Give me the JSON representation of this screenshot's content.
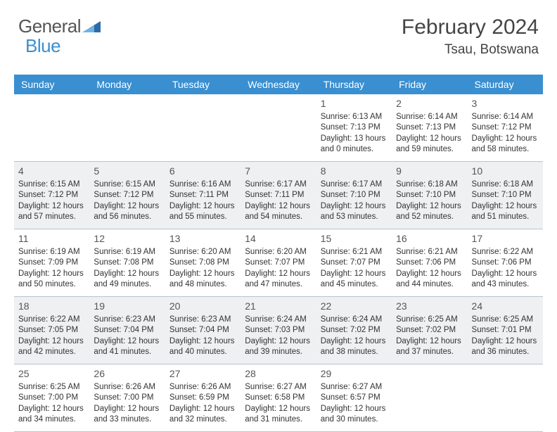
{
  "logo": {
    "text1": "General",
    "text2": "Blue",
    "icon_color": "#2f6aa8"
  },
  "header": {
    "month": "February 2024",
    "location": "Tsau, Botswana"
  },
  "colors": {
    "header_bar": "#3a8fd0",
    "gray_cell": "#eef0f2",
    "rule": "#b8c4d0",
    "text": "#333333"
  },
  "weekdays": [
    "Sunday",
    "Monday",
    "Tuesday",
    "Wednesday",
    "Thursday",
    "Friday",
    "Saturday"
  ],
  "gray_rows": [
    1,
    3
  ],
  "weeks": [
    [
      null,
      null,
      null,
      null,
      {
        "n": "1",
        "sr": "6:13 AM",
        "ss": "7:13 PM",
        "dl": "13 hours and 0 minutes."
      },
      {
        "n": "2",
        "sr": "6:14 AM",
        "ss": "7:13 PM",
        "dl": "12 hours and 59 minutes."
      },
      {
        "n": "3",
        "sr": "6:14 AM",
        "ss": "7:12 PM",
        "dl": "12 hours and 58 minutes."
      }
    ],
    [
      {
        "n": "4",
        "sr": "6:15 AM",
        "ss": "7:12 PM",
        "dl": "12 hours and 57 minutes."
      },
      {
        "n": "5",
        "sr": "6:15 AM",
        "ss": "7:12 PM",
        "dl": "12 hours and 56 minutes."
      },
      {
        "n": "6",
        "sr": "6:16 AM",
        "ss": "7:11 PM",
        "dl": "12 hours and 55 minutes."
      },
      {
        "n": "7",
        "sr": "6:17 AM",
        "ss": "7:11 PM",
        "dl": "12 hours and 54 minutes."
      },
      {
        "n": "8",
        "sr": "6:17 AM",
        "ss": "7:10 PM",
        "dl": "12 hours and 53 minutes."
      },
      {
        "n": "9",
        "sr": "6:18 AM",
        "ss": "7:10 PM",
        "dl": "12 hours and 52 minutes."
      },
      {
        "n": "10",
        "sr": "6:18 AM",
        "ss": "7:10 PM",
        "dl": "12 hours and 51 minutes."
      }
    ],
    [
      {
        "n": "11",
        "sr": "6:19 AM",
        "ss": "7:09 PM",
        "dl": "12 hours and 50 minutes."
      },
      {
        "n": "12",
        "sr": "6:19 AM",
        "ss": "7:08 PM",
        "dl": "12 hours and 49 minutes."
      },
      {
        "n": "13",
        "sr": "6:20 AM",
        "ss": "7:08 PM",
        "dl": "12 hours and 48 minutes."
      },
      {
        "n": "14",
        "sr": "6:20 AM",
        "ss": "7:07 PM",
        "dl": "12 hours and 47 minutes."
      },
      {
        "n": "15",
        "sr": "6:21 AM",
        "ss": "7:07 PM",
        "dl": "12 hours and 45 minutes."
      },
      {
        "n": "16",
        "sr": "6:21 AM",
        "ss": "7:06 PM",
        "dl": "12 hours and 44 minutes."
      },
      {
        "n": "17",
        "sr": "6:22 AM",
        "ss": "7:06 PM",
        "dl": "12 hours and 43 minutes."
      }
    ],
    [
      {
        "n": "18",
        "sr": "6:22 AM",
        "ss": "7:05 PM",
        "dl": "12 hours and 42 minutes."
      },
      {
        "n": "19",
        "sr": "6:23 AM",
        "ss": "7:04 PM",
        "dl": "12 hours and 41 minutes."
      },
      {
        "n": "20",
        "sr": "6:23 AM",
        "ss": "7:04 PM",
        "dl": "12 hours and 40 minutes."
      },
      {
        "n": "21",
        "sr": "6:24 AM",
        "ss": "7:03 PM",
        "dl": "12 hours and 39 minutes."
      },
      {
        "n": "22",
        "sr": "6:24 AM",
        "ss": "7:02 PM",
        "dl": "12 hours and 38 minutes."
      },
      {
        "n": "23",
        "sr": "6:25 AM",
        "ss": "7:02 PM",
        "dl": "12 hours and 37 minutes."
      },
      {
        "n": "24",
        "sr": "6:25 AM",
        "ss": "7:01 PM",
        "dl": "12 hours and 36 minutes."
      }
    ],
    [
      {
        "n": "25",
        "sr": "6:25 AM",
        "ss": "7:00 PM",
        "dl": "12 hours and 34 minutes."
      },
      {
        "n": "26",
        "sr": "6:26 AM",
        "ss": "7:00 PM",
        "dl": "12 hours and 33 minutes."
      },
      {
        "n": "27",
        "sr": "6:26 AM",
        "ss": "6:59 PM",
        "dl": "12 hours and 32 minutes."
      },
      {
        "n": "28",
        "sr": "6:27 AM",
        "ss": "6:58 PM",
        "dl": "12 hours and 31 minutes."
      },
      {
        "n": "29",
        "sr": "6:27 AM",
        "ss": "6:57 PM",
        "dl": "12 hours and 30 minutes."
      },
      null,
      null
    ]
  ],
  "labels": {
    "sunrise": "Sunrise:",
    "sunset": "Sunset:",
    "daylight": "Daylight:"
  }
}
